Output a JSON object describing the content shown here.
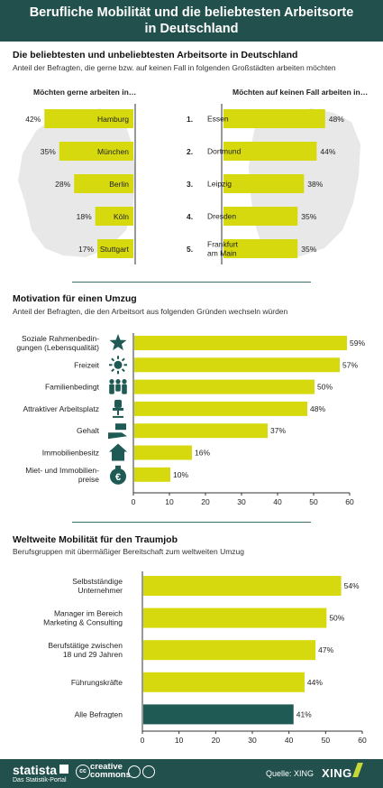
{
  "header": {
    "line1": "Berufliche Mobilität und die beliebtesten Arbeitsorte",
    "line2": "in Deutschland"
  },
  "section1": {
    "title": "Die beliebtesten und unbeliebtesten Arbeitsorte in Deutschland",
    "subtitle": "Anteil der Befragten, die gerne bzw. auf keinen Fall in folgenden Großstädten arbeiten möchten",
    "left_header": "Möchten gerne arbeiten in…",
    "right_header": "Möchten auf keinen Fall arbeiten in…"
  },
  "section2": {
    "title": "Motivation für einen Umzug",
    "subtitle": "Anteil der Befragten, die den Arbeitsort aus folgenden Gründen wechseln würden"
  },
  "section3": {
    "title": "Weltweite Mobilität für den Traumjob",
    "subtitle": "Berufsgruppen mit übermäßiger Bereitschaft zum weltweiten Umzug"
  },
  "footer": {
    "brand": "statista",
    "brand_sub": "Das Statistik-Portal",
    "cc_line1": "creative",
    "cc_line2": "commons",
    "source": "Quelle: XING",
    "xing": "XING"
  },
  "colors": {
    "bar": "#d6d90d",
    "highlight": "#1f5a55",
    "header": "#22504c"
  },
  "chart_data": [
    {
      "type": "bar",
      "orientation": "horizontal",
      "side": "left",
      "categories": [
        "Hamburg",
        "München",
        "Berlin",
        "Köln",
        "Stuttgart"
      ],
      "values": [
        42,
        35,
        28,
        18,
        17
      ],
      "value_labels": [
        "42%",
        "35%",
        "28%",
        "18%",
        "17%"
      ]
    },
    {
      "type": "bar",
      "orientation": "horizontal",
      "side": "right",
      "ranks": [
        "1.",
        "2.",
        "3.",
        "4.",
        "5."
      ],
      "categories": [
        [
          "Essen"
        ],
        [
          "Dortmund"
        ],
        [
          "Leipzig"
        ],
        [
          "Dresden"
        ],
        [
          "Frankfurt",
          "am Main"
        ]
      ],
      "values": [
        48,
        44,
        38,
        35,
        35
      ],
      "value_labels": [
        "48%",
        "44%",
        "38%",
        "35%",
        "35%"
      ]
    },
    {
      "type": "bar",
      "orientation": "horizontal",
      "categories": [
        [
          "Soziale Rahmenbedin-",
          "gungen (Lebensqualität)"
        ],
        [
          "Freizeit"
        ],
        [
          "Familienbedingt"
        ],
        [
          "Attraktiver Arbeitsplatz"
        ],
        [
          "Gehalt"
        ],
        [
          "Immobilienbesitz"
        ],
        [
          "Miet- und Immobilien-",
          "preise"
        ]
      ],
      "icons": [
        "star-icon",
        "sun-icon",
        "family-icon",
        "office-chair-icon",
        "money-hand-icon",
        "house-icon",
        "euro-bag-icon"
      ],
      "values": [
        59,
        57,
        50,
        48,
        37,
        16,
        10
      ],
      "value_labels": [
        "59%",
        "57%",
        "50%",
        "48%",
        "37%",
        "16%",
        "10%"
      ],
      "xlim": [
        0,
        60
      ],
      "xticks": [
        "0",
        "10",
        "20",
        "30",
        "40",
        "50",
        "60"
      ]
    },
    {
      "type": "bar",
      "orientation": "horizontal",
      "categories": [
        [
          "Selbstständige",
          "Unternehmer"
        ],
        [
          "Manager im Bereich",
          "Marketing & Consulting"
        ],
        [
          "Berufstätige zwischen",
          "18 und 29 Jahren"
        ],
        [
          "Führungskräfte"
        ],
        [
          "Alle Befragten"
        ]
      ],
      "values": [
        54,
        50,
        47,
        44,
        41
      ],
      "value_labels": [
        "54%",
        "50%",
        "47%",
        "44%",
        "41%"
      ],
      "highlight_index": 4,
      "xlim": [
        0,
        60
      ],
      "xticks": [
        "0",
        "10",
        "20",
        "30",
        "40",
        "50",
        "60"
      ]
    }
  ]
}
